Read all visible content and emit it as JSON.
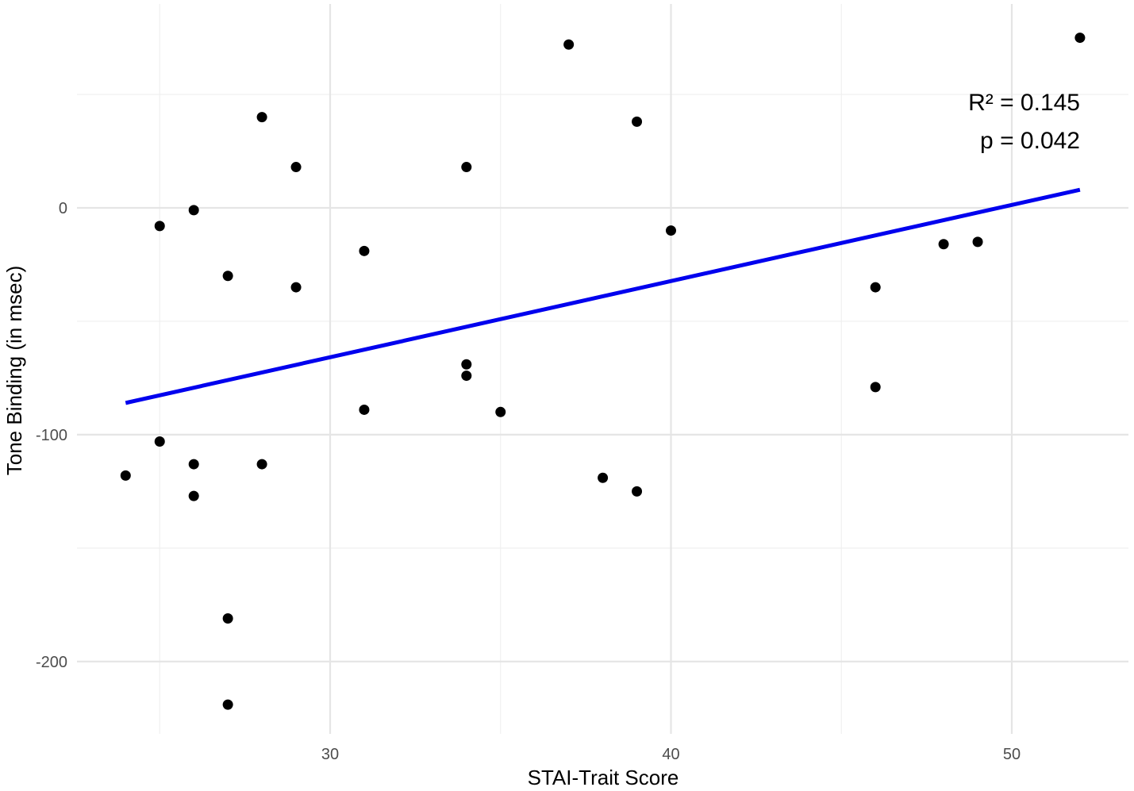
{
  "chart_data": {
    "type": "scatter",
    "title": "",
    "xlabel": "STAI-Trait Score",
    "ylabel": "Tone Binding (in msec)",
    "xlim": [
      22.8,
      53.4
    ],
    "ylim": [
      -232,
      90
    ],
    "x_ticks": [
      30,
      40,
      50
    ],
    "x_minor_ticks": [
      25,
      35,
      45
    ],
    "y_ticks": [
      0,
      -100,
      -200
    ],
    "y_minor_ticks": [
      50,
      -50,
      -150
    ],
    "tick_labels": {
      "x": [
        "30",
        "40",
        "50"
      ],
      "y": [
        "0",
        "-100",
        "-200"
      ]
    },
    "grid": true,
    "legend": "none",
    "colors": {
      "points": "#000000",
      "fit_line": "#0000ee",
      "grid": "#e5e5e5"
    },
    "points": [
      {
        "x": 24,
        "y": -118
      },
      {
        "x": 25,
        "y": -8
      },
      {
        "x": 25,
        "y": -103
      },
      {
        "x": 26,
        "y": -1
      },
      {
        "x": 26,
        "y": -113
      },
      {
        "x": 26,
        "y": -127
      },
      {
        "x": 27,
        "y": -30
      },
      {
        "x": 27,
        "y": -181
      },
      {
        "x": 27,
        "y": -219
      },
      {
        "x": 28,
        "y": 40
      },
      {
        "x": 28,
        "y": -113
      },
      {
        "x": 29,
        "y": 18
      },
      {
        "x": 29,
        "y": -35
      },
      {
        "x": 31,
        "y": -19
      },
      {
        "x": 31,
        "y": -89
      },
      {
        "x": 34,
        "y": 18
      },
      {
        "x": 34,
        "y": -69
      },
      {
        "x": 34,
        "y": -74
      },
      {
        "x": 35,
        "y": -90
      },
      {
        "x": 37,
        "y": 72
      },
      {
        "x": 38,
        "y": -119
      },
      {
        "x": 39,
        "y": 38
      },
      {
        "x": 39,
        "y": -125
      },
      {
        "x": 40,
        "y": -10
      },
      {
        "x": 46,
        "y": -35
      },
      {
        "x": 46,
        "y": -79
      },
      {
        "x": 48,
        "y": -16
      },
      {
        "x": 49,
        "y": -15
      },
      {
        "x": 52,
        "y": 75
      }
    ],
    "fit_line": {
      "x": [
        24,
        52
      ],
      "y": [
        -86,
        8
      ]
    },
    "annotations": [
      "R² = 0.145",
      "p = 0.042"
    ]
  }
}
